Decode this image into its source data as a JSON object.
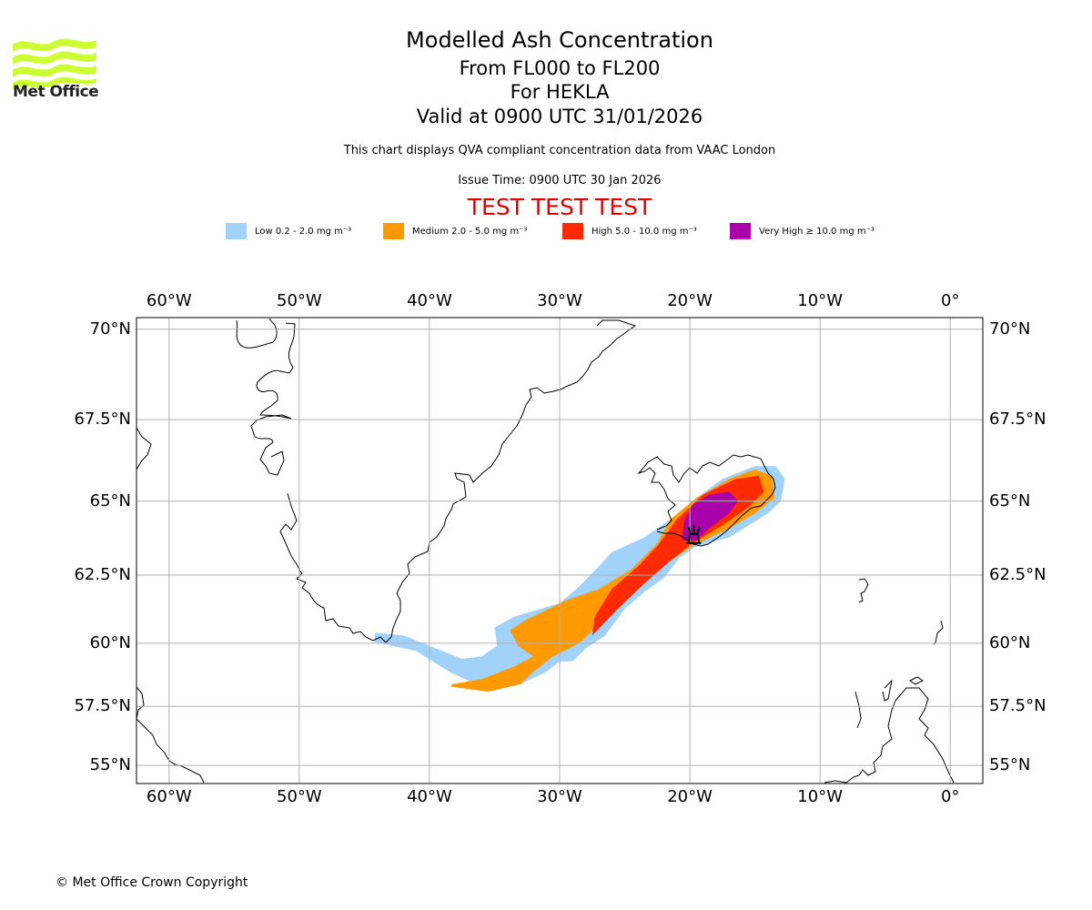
{
  "logo": {
    "name": "Met Office",
    "text": "Met Office",
    "color": "#ccff33"
  },
  "header": {
    "title": "Modelled Ash Concentration",
    "level_range": "From FL000 to FL200",
    "volcano_line": "For HEKLA",
    "valid_time": "Valid at 0900 UTC 31/01/2026",
    "description": "This chart displays QVA compliant concentration data from VAAC London",
    "issue_time": "Issue Time: 0900 UTC 30 Jan 2026",
    "test_banner": "TEST TEST TEST"
  },
  "legend": [
    {
      "label": "Low 0.2 - 2.0 mg m⁻³",
      "color": "#a0d2fa",
      "level": "low"
    },
    {
      "label": "Medium 2.0 - 5.0 mg m⁻³",
      "color": "#ff9900",
      "level": "medium"
    },
    {
      "label": "High 5.0 - 10.0 mg m⁻³",
      "color": "#ff2a00",
      "level": "high"
    },
    {
      "label": "Very High  ≥  10.0 mg m⁻³",
      "color": "#aa00aa",
      "level": "very-high"
    }
  ],
  "map": {
    "projection": "Mercator",
    "extent": {
      "lon_min": -62.5,
      "lon_max": 2.5,
      "lat_min": 54.2,
      "lat_max": 70.3
    },
    "lon_ticks": [
      {
        "value": -60,
        "label": "60°W"
      },
      {
        "value": -50,
        "label": "50°W"
      },
      {
        "value": -40,
        "label": "40°W"
      },
      {
        "value": -30,
        "label": "30°W"
      },
      {
        "value": -20,
        "label": "20°W"
      },
      {
        "value": -10,
        "label": "10°W"
      },
      {
        "value": 0,
        "label": "0°"
      }
    ],
    "lat_ticks": [
      {
        "value": 70,
        "label": "70°N"
      },
      {
        "value": 67.5,
        "label": "67.5°N"
      },
      {
        "value": 65,
        "label": "65°N"
      },
      {
        "value": 62.5,
        "label": "62.5°N"
      },
      {
        "value": 60,
        "label": "60°N"
      },
      {
        "value": 57.5,
        "label": "57.5°N"
      },
      {
        "value": 55,
        "label": "55°N"
      }
    ],
    "grid": true,
    "volcano": {
      "name": "HEKLA",
      "lon": -19.7,
      "lat": 63.98,
      "symbol": "volcano-icon"
    },
    "plume_levels": {
      "low": [
        [
          -44.2,
          60.05
        ],
        [
          -41,
          59.7
        ],
        [
          -38.5,
          58.9
        ],
        [
          -36,
          58.3
        ],
        [
          -33,
          58.4
        ],
        [
          -31,
          58.9
        ],
        [
          -30,
          59.3
        ],
        [
          -29,
          59.3
        ],
        [
          -28,
          59.8
        ],
        [
          -26.5,
          60.3
        ],
        [
          -25,
          61.3
        ],
        [
          -23.5,
          61.9
        ],
        [
          -22,
          62.4
        ],
        [
          -20.8,
          63.1
        ],
        [
          -19.5,
          63.5
        ],
        [
          -17,
          63.8
        ],
        [
          -15.5,
          64.2
        ],
        [
          -14,
          64.6
        ],
        [
          -13,
          65.0
        ],
        [
          -12.7,
          65.7
        ],
        [
          -13.4,
          66.1
        ],
        [
          -15,
          66.1
        ],
        [
          -17.5,
          65.7
        ],
        [
          -19.5,
          65.1
        ],
        [
          -21.2,
          64.5
        ],
        [
          -23.5,
          63.8
        ],
        [
          -26,
          63.3
        ],
        [
          -27,
          62.8
        ],
        [
          -28.5,
          62.1
        ],
        [
          -30,
          61.5
        ],
        [
          -33.5,
          61.0
        ],
        [
          -35,
          60.6
        ],
        [
          -34.8,
          59.9
        ],
        [
          -36,
          59.5
        ],
        [
          -37.5,
          59.4
        ],
        [
          -40,
          59.9
        ],
        [
          -42,
          60.3
        ],
        [
          -44.2,
          60.4
        ]
      ],
      "medium": [
        [
          -38.3,
          58.3
        ],
        [
          -35.5,
          58.1
        ],
        [
          -33,
          58.4
        ],
        [
          -32,
          58.9
        ],
        [
          -30.5,
          59.5
        ],
        [
          -28.5,
          60.0
        ],
        [
          -27.2,
          60.6
        ],
        [
          -25.5,
          61.5
        ],
        [
          -23.5,
          62.3
        ],
        [
          -21.5,
          63.0
        ],
        [
          -19.8,
          63.5
        ],
        [
          -17,
          64.1
        ],
        [
          -15,
          64.6
        ],
        [
          -13.5,
          65.1
        ],
        [
          -13.7,
          65.8
        ],
        [
          -15,
          66.0
        ],
        [
          -17,
          65.7
        ],
        [
          -19.5,
          65.1
        ],
        [
          -21.5,
          64.4
        ],
        [
          -22.5,
          63.6
        ],
        [
          -24.5,
          62.7
        ],
        [
          -27,
          62.0
        ],
        [
          -29.5,
          61.6
        ],
        [
          -32.5,
          60.9
        ],
        [
          -33.8,
          60.5
        ],
        [
          -33.2,
          59.9
        ],
        [
          -32,
          59.5
        ],
        [
          -33.5,
          59.1
        ],
        [
          -36,
          58.6
        ],
        [
          -38.3,
          58.4
        ]
      ],
      "high": [
        [
          -27.5,
          60.3
        ],
        [
          -25.5,
          61.3
        ],
        [
          -23.5,
          62.2
        ],
        [
          -21.5,
          63.0
        ],
        [
          -19.8,
          63.6
        ],
        [
          -17.5,
          64.2
        ],
        [
          -15.5,
          64.8
        ],
        [
          -14.3,
          65.3
        ],
        [
          -14.7,
          65.8
        ],
        [
          -16.5,
          65.7
        ],
        [
          -19,
          65.2
        ],
        [
          -21,
          64.4
        ],
        [
          -22.5,
          63.5
        ],
        [
          -24,
          62.8
        ],
        [
          -26,
          62.0
        ],
        [
          -27.3,
          61.0
        ]
      ],
      "very_high": [
        [
          -20.6,
          63.7
        ],
        [
          -19.5,
          63.7
        ],
        [
          -18.5,
          64.1
        ],
        [
          -17,
          64.6
        ],
        [
          -16.3,
          65.0
        ],
        [
          -17,
          65.3
        ],
        [
          -18.5,
          65.2
        ],
        [
          -19.7,
          64.9
        ],
        [
          -20.4,
          64.4
        ]
      ]
    }
  },
  "footer": {
    "copyright": "© Met Office Crown Copyright"
  }
}
